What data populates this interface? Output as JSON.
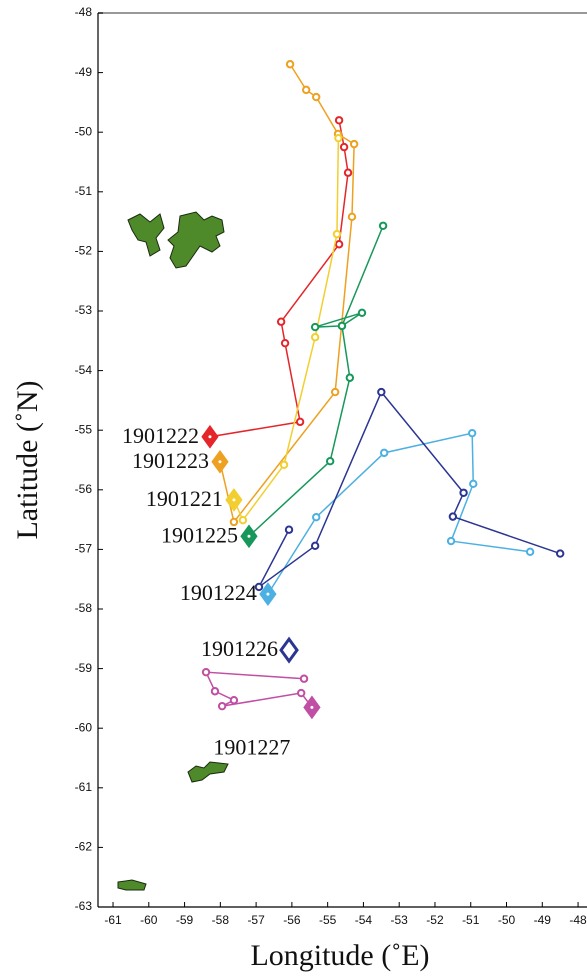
{
  "chart_data": {
    "type": "trajectory",
    "x_label": "Longitude (˚E)",
    "y_label": "Latitude (˚N)",
    "xlim": [
      -61.42,
      -47.75
    ],
    "ylim": [
      -63,
      -48
    ],
    "xticks": [
      -61,
      -60,
      -59,
      -58,
      -57,
      -56,
      -55,
      -54,
      -53,
      -52,
      -51,
      -50,
      -49,
      -48
    ],
    "yticks": [
      -48,
      -49,
      -50,
      -51,
      -52,
      -53,
      -54,
      -55,
      -56,
      -57,
      -58,
      -59,
      -60,
      -61,
      -62,
      -63
    ],
    "series": [
      {
        "name": "1901222",
        "color": "#e4262a",
        "deploy": [
          -58.29,
          -55.11
        ],
        "connect_deploy": true,
        "x": [
          -55.77,
          -56.19,
          -56.3,
          -54.68,
          -54.43,
          -54.54,
          -54.68
        ],
        "y": [
          -54.86,
          -53.54,
          -53.18,
          -51.88,
          -50.68,
          -50.25,
          -49.8
        ]
      },
      {
        "name": "1901223",
        "color": "#eea020",
        "deploy": [
          -58.01,
          -55.53
        ],
        "connect_deploy": true,
        "x": [
          -57.62,
          -54.79,
          -54.32,
          -54.26,
          -54.71,
          -55.32,
          -55.6,
          -56.05
        ],
        "y": [
          -56.54,
          -54.36,
          -51.42,
          -50.2,
          -50.03,
          -49.41,
          -49.29,
          -48.86
        ]
      },
      {
        "name": "1901221",
        "color": "#f2cf2e",
        "deploy": [
          -57.62,
          -56.17
        ],
        "connect_deploy": true,
        "x": [
          -57.37,
          -56.22,
          -55.35,
          -54.74,
          -54.7
        ],
        "y": [
          -56.51,
          -55.58,
          -53.44,
          -51.71,
          -50.1
        ]
      },
      {
        "name": "1901225",
        "color": "#17985a",
        "deploy": [
          -57.2,
          -56.78
        ],
        "connect_deploy": true,
        "x": [
          -54.93,
          -54.38,
          -54.6,
          -55.35,
          -54.04,
          -54.6,
          -53.45
        ],
        "y": [
          -55.52,
          -54.12,
          -53.25,
          -53.27,
          -53.03,
          -53.25,
          -51.57
        ]
      },
      {
        "name": "1901224",
        "color": "#4cb0e2",
        "deploy": [
          -56.67,
          -57.75
        ],
        "connect_deploy": true,
        "x": [
          -55.32,
          -53.42,
          -50.96,
          -50.93,
          -51.55,
          -49.34
        ],
        "y": [
          -56.46,
          -55.38,
          -55.05,
          -55.9,
          -56.86,
          -57.04
        ]
      },
      {
        "name": "1901226",
        "color": "#2b3592",
        "deploy": [
          -56.08,
          -58.69
        ],
        "connect_deploy": false,
        "x": [
          -56.08,
          -56.92,
          -55.35,
          -53.5,
          -51.2,
          -51.5,
          -48.5
        ],
        "y": [
          -56.67,
          -57.63,
          -56.94,
          -54.36,
          -56.05,
          -56.45,
          -57.07
        ]
      },
      {
        "name": "1901227",
        "color": "#c04ea4",
        "deploy": [
          -55.44,
          -59.65
        ],
        "connect_deploy": true,
        "x": [
          -55.74,
          -57.95,
          -57.62,
          -58.15,
          -58.4,
          -55.66
        ],
        "y": [
          -59.41,
          -59.63,
          -59.53,
          -59.38,
          -59.06,
          -59.17
        ]
      }
    ]
  }
}
